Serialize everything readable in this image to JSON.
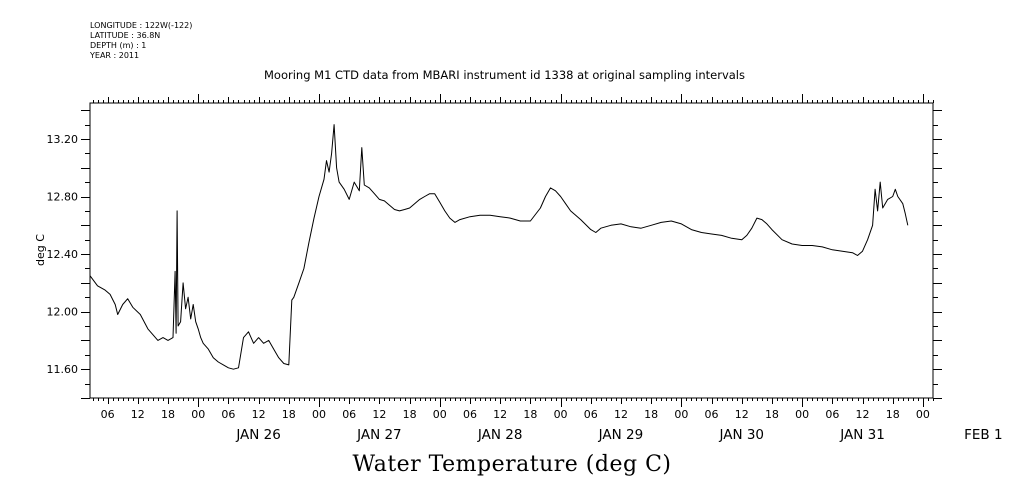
{
  "header": {
    "longitude": "LONGITUDE : 122W(-122)",
    "latitude": "LATITUDE : 36.8N",
    "depth": "DEPTH (m) : 1",
    "year": "YEAR : 2011"
  },
  "chart_data": {
    "type": "line",
    "title": "Mooring M1 CTD data from MBARI instrument id 1338 at original sampling intervals",
    "bottom_title": "Water Temperature (deg C)",
    "xlabel": "",
    "ylabel": "deg C",
    "ylim": [
      11.4,
      13.45
    ],
    "yticks": [
      "11.60",
      "12.00",
      "12.40",
      "12.80",
      "13.20"
    ],
    "x_unit": "hours since Jan 25 00:00",
    "xlim": [
      2.5,
      170
    ],
    "hour_labels": [
      "06",
      "12",
      "18",
      "00",
      "06",
      "12",
      "18",
      "00",
      "06",
      "12",
      "18",
      "00",
      "06",
      "12",
      "18",
      "00",
      "06",
      "12",
      "18",
      "00",
      "06",
      "12",
      "18",
      "00",
      "06",
      "12",
      "18",
      "00"
    ],
    "day_labels": [
      "JAN 26",
      "JAN 27",
      "JAN 28",
      "JAN 29",
      "JAN 30",
      "JAN 31",
      "FEB  1"
    ],
    "grid": false,
    "series": [
      {
        "name": "",
        "color": "#000000",
        "points": [
          [
            2.5,
            12.25
          ],
          [
            4,
            12.18
          ],
          [
            5.5,
            12.15
          ],
          [
            6.5,
            12.12
          ],
          [
            7.5,
            12.05
          ],
          [
            8,
            11.98
          ],
          [
            9,
            12.05
          ],
          [
            10,
            12.09
          ],
          [
            11,
            12.03
          ],
          [
            12.5,
            11.98
          ],
          [
            14,
            11.88
          ],
          [
            15,
            11.84
          ],
          [
            16,
            11.8
          ],
          [
            17,
            11.82
          ],
          [
            18,
            11.8
          ],
          [
            19,
            11.82
          ],
          [
            19.4,
            12.28
          ],
          [
            19.6,
            11.85
          ],
          [
            19.8,
            12.7
          ],
          [
            20.0,
            11.9
          ],
          [
            20.5,
            11.93
          ],
          [
            21,
            12.2
          ],
          [
            21.5,
            12.02
          ],
          [
            22,
            12.1
          ],
          [
            22.5,
            11.95
          ],
          [
            23,
            12.05
          ],
          [
            23.5,
            11.93
          ],
          [
            24,
            11.88
          ],
          [
            24.5,
            11.82
          ],
          [
            25,
            11.78
          ],
          [
            26,
            11.74
          ],
          [
            27,
            11.68
          ],
          [
            28,
            11.65
          ],
          [
            29,
            11.63
          ],
          [
            30,
            11.61
          ],
          [
            31,
            11.6
          ],
          [
            32,
            11.61
          ],
          [
            33,
            11.82
          ],
          [
            34,
            11.86
          ],
          [
            35,
            11.78
          ],
          [
            36,
            11.82
          ],
          [
            37,
            11.78
          ],
          [
            38,
            11.8
          ],
          [
            39,
            11.74
          ],
          [
            40,
            11.68
          ],
          [
            41,
            11.64
          ],
          [
            42,
            11.63
          ],
          [
            42.6,
            12.08
          ],
          [
            43,
            12.1
          ],
          [
            44,
            12.2
          ],
          [
            45,
            12.3
          ],
          [
            46,
            12.48
          ],
          [
            47,
            12.65
          ],
          [
            48,
            12.8
          ],
          [
            49,
            12.92
          ],
          [
            49.5,
            13.05
          ],
          [
            50,
            12.97
          ],
          [
            50.5,
            13.1
          ],
          [
            51,
            13.3
          ],
          [
            51.5,
            13.0
          ],
          [
            52,
            12.9
          ],
          [
            53,
            12.85
          ],
          [
            54,
            12.78
          ],
          [
            55,
            12.9
          ],
          [
            56,
            12.84
          ],
          [
            56.5,
            13.14
          ],
          [
            57,
            12.88
          ],
          [
            58,
            12.86
          ],
          [
            59,
            12.82
          ],
          [
            60,
            12.78
          ],
          [
            61,
            12.77
          ],
          [
            62,
            12.74
          ],
          [
            63,
            12.71
          ],
          [
            64,
            12.7
          ],
          [
            65,
            12.71
          ],
          [
            66,
            12.72
          ],
          [
            67,
            12.75
          ],
          [
            68,
            12.78
          ],
          [
            69,
            12.8
          ],
          [
            70,
            12.82
          ],
          [
            71,
            12.82
          ],
          [
            72,
            12.76
          ],
          [
            73,
            12.7
          ],
          [
            74,
            12.65
          ],
          [
            75,
            12.62
          ],
          [
            76,
            12.64
          ],
          [
            78,
            12.66
          ],
          [
            80,
            12.67
          ],
          [
            82,
            12.67
          ],
          [
            84,
            12.66
          ],
          [
            86,
            12.65
          ],
          [
            88,
            12.63
          ],
          [
            90,
            12.63
          ],
          [
            92,
            12.72
          ],
          [
            93,
            12.8
          ],
          [
            94,
            12.86
          ],
          [
            95,
            12.84
          ],
          [
            96,
            12.8
          ],
          [
            97,
            12.75
          ],
          [
            98,
            12.7
          ],
          [
            100,
            12.64
          ],
          [
            102,
            12.57
          ],
          [
            103,
            12.55
          ],
          [
            104,
            12.58
          ],
          [
            106,
            12.6
          ],
          [
            108,
            12.61
          ],
          [
            110,
            12.59
          ],
          [
            112,
            12.58
          ],
          [
            114,
            12.6
          ],
          [
            116,
            12.62
          ],
          [
            118,
            12.63
          ],
          [
            120,
            12.61
          ],
          [
            122,
            12.57
          ],
          [
            124,
            12.55
          ],
          [
            126,
            12.54
          ],
          [
            128,
            12.53
          ],
          [
            130,
            12.51
          ],
          [
            132,
            12.5
          ],
          [
            133,
            12.53
          ],
          [
            134,
            12.58
          ],
          [
            135,
            12.65
          ],
          [
            136,
            12.64
          ],
          [
            137,
            12.61
          ],
          [
            138,
            12.57
          ],
          [
            140,
            12.5
          ],
          [
            142,
            12.47
          ],
          [
            144,
            12.46
          ],
          [
            146,
            12.46
          ],
          [
            148,
            12.45
          ],
          [
            150,
            12.43
          ],
          [
            152,
            12.42
          ],
          [
            154,
            12.41
          ],
          [
            155,
            12.39
          ],
          [
            156,
            12.42
          ],
          [
            157,
            12.5
          ],
          [
            158,
            12.6
          ],
          [
            158.5,
            12.85
          ],
          [
            159,
            12.7
          ],
          [
            159.5,
            12.9
          ],
          [
            160,
            12.72
          ],
          [
            161,
            12.78
          ],
          [
            162,
            12.8
          ],
          [
            162.5,
            12.85
          ],
          [
            163,
            12.8
          ],
          [
            164,
            12.75
          ],
          [
            164.5,
            12.68
          ],
          [
            165,
            12.6
          ]
        ]
      }
    ]
  }
}
